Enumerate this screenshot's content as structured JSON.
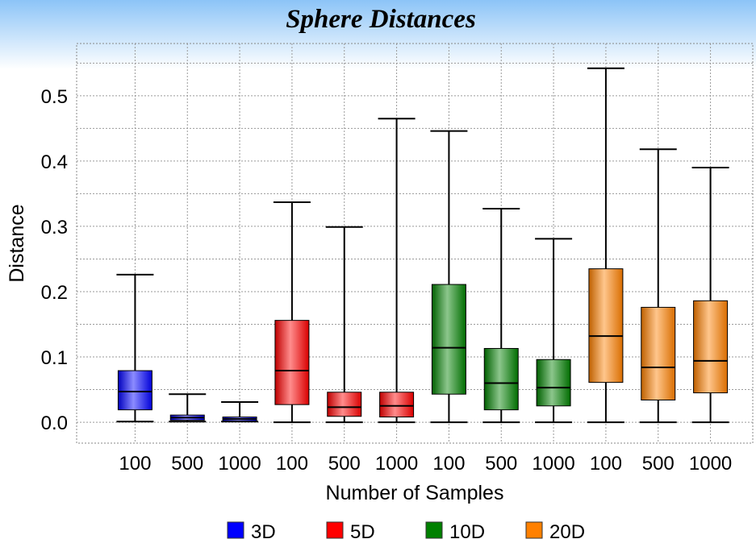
{
  "chart_data": {
    "type": "box",
    "title": "Sphere Distances",
    "xlabel": "Number of Samples",
    "ylabel": "Distance",
    "ylim": [
      -0.032,
      0.58
    ],
    "yticks": [
      "0.0",
      "0.1",
      "0.2",
      "0.3",
      "0.4",
      "0.5"
    ],
    "grid": true,
    "legend_position": "bottom",
    "categories": [
      "100",
      "500",
      "1000",
      "100",
      "500",
      "1000",
      "100",
      "500",
      "1000",
      "100",
      "500",
      "1000"
    ],
    "series": [
      {
        "name": "3D",
        "color": "#0000ff",
        "boxes": [
          {
            "category": "100",
            "min": 0.001,
            "q1": 0.019,
            "median": 0.047,
            "q3": 0.079,
            "max": 0.226
          },
          {
            "category": "500",
            "min": 0.001,
            "q1": 0.003,
            "median": 0.007,
            "q3": 0.011,
            "max": 0.043
          },
          {
            "category": "1000",
            "min": 0.001,
            "q1": 0.002,
            "median": 0.005,
            "q3": 0.008,
            "max": 0.031
          }
        ]
      },
      {
        "name": "5D",
        "color": "#ff0000",
        "boxes": [
          {
            "category": "100",
            "min": 0.0,
            "q1": 0.027,
            "median": 0.079,
            "q3": 0.156,
            "max": 0.337
          },
          {
            "category": "500",
            "min": 0.0,
            "q1": 0.009,
            "median": 0.023,
            "q3": 0.046,
            "max": 0.299
          },
          {
            "category": "1000",
            "min": 0.0,
            "q1": 0.008,
            "median": 0.025,
            "q3": 0.046,
            "max": 0.465
          }
        ]
      },
      {
        "name": "10D",
        "color": "#008000",
        "boxes": [
          {
            "category": "100",
            "min": 0.0,
            "q1": 0.043,
            "median": 0.114,
            "q3": 0.211,
            "max": 0.446
          },
          {
            "category": "500",
            "min": 0.0,
            "q1": 0.019,
            "median": 0.06,
            "q3": 0.113,
            "max": 0.327
          },
          {
            "category": "1000",
            "min": 0.0,
            "q1": 0.025,
            "median": 0.053,
            "q3": 0.096,
            "max": 0.281
          }
        ]
      },
      {
        "name": "20D",
        "color": "#ff8000",
        "boxes": [
          {
            "category": "100",
            "min": 0.0,
            "q1": 0.061,
            "median": 0.132,
            "q3": 0.235,
            "max": 0.542
          },
          {
            "category": "500",
            "min": 0.0,
            "q1": 0.034,
            "median": 0.084,
            "q3": 0.176,
            "max": 0.418
          },
          {
            "category": "1000",
            "min": 0.0,
            "q1": 0.045,
            "median": 0.094,
            "q3": 0.186,
            "max": 0.39
          }
        ]
      }
    ]
  }
}
